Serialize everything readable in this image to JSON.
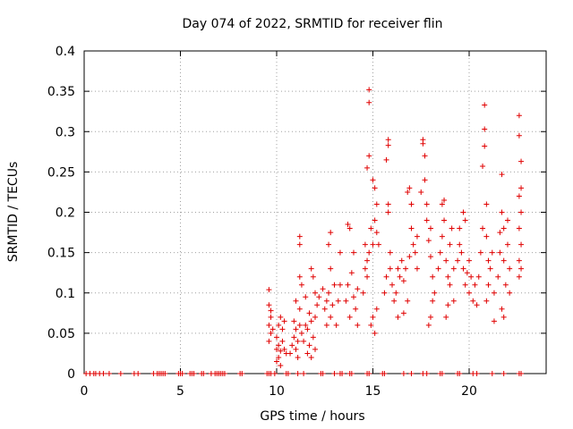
{
  "chart_data": {
    "type": "scatter",
    "title": "Day 074 of 2022, SRMTID for receiver flin",
    "xlabel": "GPS time / hours",
    "ylabel": "SRMTID / TECUs",
    "xlim": [
      0,
      24
    ],
    "ylim": [
      0,
      0.4
    ],
    "x_ticks": [
      "0",
      "5",
      "10",
      "15",
      "20"
    ],
    "y_ticks": [
      "0",
      "0.05",
      "0.1",
      "0.15",
      "0.2",
      "0.25",
      "0.3",
      "0.35",
      "0.4"
    ],
    "grid": true,
    "legend": "none",
    "marker": "plus",
    "series": [
      {
        "color": "#e00000",
        "points": [
          [
            0.1,
            0
          ],
          [
            0.3,
            0
          ],
          [
            0.5,
            0
          ],
          [
            0.6,
            0
          ],
          [
            0.8,
            0
          ],
          [
            1.0,
            0
          ],
          [
            1.3,
            0
          ],
          [
            1.9,
            0
          ],
          [
            2.6,
            0
          ],
          [
            2.8,
            0
          ],
          [
            3.6,
            0
          ],
          [
            3.8,
            0
          ],
          [
            3.9,
            0
          ],
          [
            4.0,
            0
          ],
          [
            4.1,
            0
          ],
          [
            4.2,
            0
          ],
          [
            4.9,
            0
          ],
          [
            5.0,
            0
          ],
          [
            5.1,
            0
          ],
          [
            5.5,
            0
          ],
          [
            5.6,
            0
          ],
          [
            5.7,
            0
          ],
          [
            6.1,
            0
          ],
          [
            6.2,
            0
          ],
          [
            6.6,
            0
          ],
          [
            6.8,
            0
          ],
          [
            6.9,
            0
          ],
          [
            7.0,
            0
          ],
          [
            7.1,
            0
          ],
          [
            7.2,
            0
          ],
          [
            7.3,
            0
          ],
          [
            8.1,
            0
          ],
          [
            8.2,
            0
          ],
          [
            9.5,
            0
          ],
          [
            9.6,
            0
          ],
          [
            9.7,
            0
          ],
          [
            9.9,
            0
          ],
          [
            10.5,
            0
          ],
          [
            10.6,
            0
          ],
          [
            11.1,
            0
          ],
          [
            11.4,
            0
          ],
          [
            12.3,
            0
          ],
          [
            12.4,
            0
          ],
          [
            13.0,
            0
          ],
          [
            13.3,
            0
          ],
          [
            13.4,
            0
          ],
          [
            13.8,
            0
          ],
          [
            13.9,
            0
          ],
          [
            14.7,
            0
          ],
          [
            14.8,
            0
          ],
          [
            15.5,
            0
          ],
          [
            15.6,
            0
          ],
          [
            16.6,
            0
          ],
          [
            17.0,
            0
          ],
          [
            17.6,
            0
          ],
          [
            17.8,
            0
          ],
          [
            18.5,
            0
          ],
          [
            18.6,
            0
          ],
          [
            19.4,
            0
          ],
          [
            19.5,
            0
          ],
          [
            20.2,
            0
          ],
          [
            20.4,
            0
          ],
          [
            21.2,
            0
          ],
          [
            21.8,
            0
          ],
          [
            22.6,
            0
          ],
          [
            22.7,
            0
          ],
          [
            9.6,
            0.104
          ],
          [
            9.6,
            0.085
          ],
          [
            9.7,
            0.07
          ],
          [
            9.6,
            0.06
          ],
          [
            9.7,
            0.05
          ],
          [
            9.6,
            0.04
          ],
          [
            9.8,
            0.055
          ],
          [
            9.7,
            0.078
          ],
          [
            10.0,
            0.015
          ],
          [
            10.0,
            0.03
          ],
          [
            10.0,
            0.045
          ],
          [
            10.1,
            0.02
          ],
          [
            10.1,
            0.035
          ],
          [
            10.2,
            0.028
          ],
          [
            10.2,
            0.01
          ],
          [
            10.3,
            0.04
          ],
          [
            10.3,
            0.055
          ],
          [
            10.4,
            0.03
          ],
          [
            10.4,
            0.065
          ],
          [
            10.5,
            0.025
          ],
          [
            10.1,
            0.06
          ],
          [
            10.2,
            0.07
          ],
          [
            10.7,
            0.025
          ],
          [
            10.8,
            0.035
          ],
          [
            10.9,
            0.045
          ],
          [
            11.0,
            0.03
          ],
          [
            11.0,
            0.055
          ],
          [
            11.1,
            0.04
          ],
          [
            11.1,
            0.02
          ],
          [
            11.2,
            0.06
          ],
          [
            11.2,
            0.08
          ],
          [
            11.3,
            0.05
          ],
          [
            10.9,
            0.065
          ],
          [
            11.0,
            0.09
          ],
          [
            11.4,
            0.04
          ],
          [
            11.5,
            0.06
          ],
          [
            11.6,
            0.055
          ],
          [
            11.7,
            0.075
          ],
          [
            11.7,
            0.035
          ],
          [
            11.8,
            0.065
          ],
          [
            11.9,
            0.045
          ],
          [
            12.0,
            0.07
          ],
          [
            12.0,
            0.03
          ],
          [
            12.1,
            0.085
          ],
          [
            11.6,
            0.025
          ],
          [
            11.5,
            0.095
          ],
          [
            11.8,
            0.02
          ],
          [
            11.2,
            0.12
          ],
          [
            11.3,
            0.11
          ],
          [
            11.2,
            0.16
          ],
          [
            11.2,
            0.17
          ],
          [
            11.8,
            0.13
          ],
          [
            11.9,
            0.12
          ],
          [
            12.0,
            0.1
          ],
          [
            12.2,
            0.095
          ],
          [
            12.4,
            0.105
          ],
          [
            12.5,
            0.08
          ],
          [
            12.6,
            0.09
          ],
          [
            12.6,
            0.06
          ],
          [
            12.7,
            0.1
          ],
          [
            12.8,
            0.13
          ],
          [
            12.8,
            0.07
          ],
          [
            12.9,
            0.085
          ],
          [
            13.0,
            0.11
          ],
          [
            13.1,
            0.06
          ],
          [
            13.2,
            0.09
          ],
          [
            13.3,
            0.15
          ],
          [
            13.3,
            0.11
          ],
          [
            12.7,
            0.16
          ],
          [
            12.8,
            0.175
          ],
          [
            13.6,
            0.09
          ],
          [
            13.7,
            0.11
          ],
          [
            13.8,
            0.07
          ],
          [
            13.9,
            0.125
          ],
          [
            14.0,
            0.095
          ],
          [
            14.0,
            0.15
          ],
          [
            14.1,
            0.08
          ],
          [
            14.2,
            0.105
          ],
          [
            14.2,
            0.06
          ],
          [
            13.8,
            0.18
          ],
          [
            13.7,
            0.185
          ],
          [
            14.5,
            0.1
          ],
          [
            14.6,
            0.13
          ],
          [
            14.6,
            0.16
          ],
          [
            14.7,
            0.14
          ],
          [
            14.7,
            0.12
          ],
          [
            14.8,
            0.15
          ],
          [
            14.8,
            0.27
          ],
          [
            14.7,
            0.255
          ],
          [
            14.8,
            0.352
          ],
          [
            14.8,
            0.336
          ],
          [
            14.9,
            0.18
          ],
          [
            15.0,
            0.16
          ],
          [
            15.0,
            0.24
          ],
          [
            15.1,
            0.23
          ],
          [
            15.1,
            0.19
          ],
          [
            15.2,
            0.21
          ],
          [
            15.2,
            0.175
          ],
          [
            15.3,
            0.16
          ],
          [
            14.9,
            0.06
          ],
          [
            15.0,
            0.07
          ],
          [
            15.1,
            0.05
          ],
          [
            15.2,
            0.08
          ],
          [
            15.6,
            0.1
          ],
          [
            15.7,
            0.12
          ],
          [
            15.8,
            0.21
          ],
          [
            15.8,
            0.2
          ],
          [
            15.9,
            0.15
          ],
          [
            15.9,
            0.13
          ],
          [
            15.7,
            0.265
          ],
          [
            15.8,
            0.283
          ],
          [
            15.8,
            0.29
          ],
          [
            16.0,
            0.11
          ],
          [
            16.1,
            0.09
          ],
          [
            16.2,
            0.1
          ],
          [
            16.3,
            0.13
          ],
          [
            16.3,
            0.07
          ],
          [
            16.4,
            0.12
          ],
          [
            16.5,
            0.14
          ],
          [
            16.6,
            0.115
          ],
          [
            16.6,
            0.075
          ],
          [
            16.7,
            0.13
          ],
          [
            16.8,
            0.09
          ],
          [
            16.9,
            0.145
          ],
          [
            16.8,
            0.225
          ],
          [
            16.9,
            0.23
          ],
          [
            17.0,
            0.21
          ],
          [
            17.0,
            0.18
          ],
          [
            17.1,
            0.16
          ],
          [
            17.2,
            0.15
          ],
          [
            17.3,
            0.17
          ],
          [
            17.3,
            0.13
          ],
          [
            17.5,
            0.225
          ],
          [
            17.6,
            0.285
          ],
          [
            17.6,
            0.29
          ],
          [
            17.7,
            0.27
          ],
          [
            17.7,
            0.24
          ],
          [
            17.8,
            0.21
          ],
          [
            17.8,
            0.19
          ],
          [
            17.9,
            0.165
          ],
          [
            18.0,
            0.18
          ],
          [
            18.0,
            0.145
          ],
          [
            18.1,
            0.12
          ],
          [
            18.1,
            0.09
          ],
          [
            18.2,
            0.1
          ],
          [
            17.9,
            0.06
          ],
          [
            18.0,
            0.07
          ],
          [
            18.4,
            0.13
          ],
          [
            18.5,
            0.15
          ],
          [
            18.6,
            0.17
          ],
          [
            18.6,
            0.21
          ],
          [
            18.7,
            0.215
          ],
          [
            18.7,
            0.19
          ],
          [
            18.8,
            0.14
          ],
          [
            18.9,
            0.12
          ],
          [
            19.0,
            0.16
          ],
          [
            19.0,
            0.11
          ],
          [
            19.1,
            0.18
          ],
          [
            19.2,
            0.13
          ],
          [
            19.2,
            0.09
          ],
          [
            18.9,
            0.085
          ],
          [
            18.8,
            0.07
          ],
          [
            19.4,
            0.14
          ],
          [
            19.5,
            0.16
          ],
          [
            19.5,
            0.18
          ],
          [
            19.6,
            0.15
          ],
          [
            19.7,
            0.13
          ],
          [
            19.8,
            0.11
          ],
          [
            19.9,
            0.125
          ],
          [
            20.0,
            0.14
          ],
          [
            20.0,
            0.1
          ],
          [
            20.1,
            0.12
          ],
          [
            20.2,
            0.09
          ],
          [
            20.3,
            0.11
          ],
          [
            20.4,
            0.085
          ],
          [
            19.7,
            0.2
          ],
          [
            19.8,
            0.19
          ],
          [
            20.5,
            0.12
          ],
          [
            20.6,
            0.15
          ],
          [
            20.7,
            0.18
          ],
          [
            20.7,
            0.257
          ],
          [
            20.8,
            0.282
          ],
          [
            20.8,
            0.303
          ],
          [
            20.8,
            0.333
          ],
          [
            20.9,
            0.21
          ],
          [
            20.9,
            0.17
          ],
          [
            21.0,
            0.14
          ],
          [
            21.0,
            0.11
          ],
          [
            21.1,
            0.13
          ],
          [
            21.2,
            0.15
          ],
          [
            21.3,
            0.1
          ],
          [
            21.3,
            0.065
          ],
          [
            20.9,
            0.09
          ],
          [
            21.5,
            0.12
          ],
          [
            21.6,
            0.15
          ],
          [
            21.6,
            0.175
          ],
          [
            21.7,
            0.2
          ],
          [
            21.7,
            0.247
          ],
          [
            21.8,
            0.18
          ],
          [
            21.8,
            0.14
          ],
          [
            21.9,
            0.11
          ],
          [
            22.0,
            0.16
          ],
          [
            22.0,
            0.19
          ],
          [
            22.1,
            0.13
          ],
          [
            22.1,
            0.1
          ],
          [
            21.7,
            0.08
          ],
          [
            21.8,
            0.07
          ],
          [
            22.6,
            0.32
          ],
          [
            22.6,
            0.295
          ],
          [
            22.7,
            0.263
          ],
          [
            22.7,
            0.23
          ],
          [
            22.6,
            0.22
          ],
          [
            22.7,
            0.2
          ],
          [
            22.6,
            0.18
          ],
          [
            22.7,
            0.16
          ],
          [
            22.6,
            0.14
          ],
          [
            22.7,
            0.13
          ],
          [
            22.6,
            0.12
          ]
        ]
      }
    ]
  }
}
